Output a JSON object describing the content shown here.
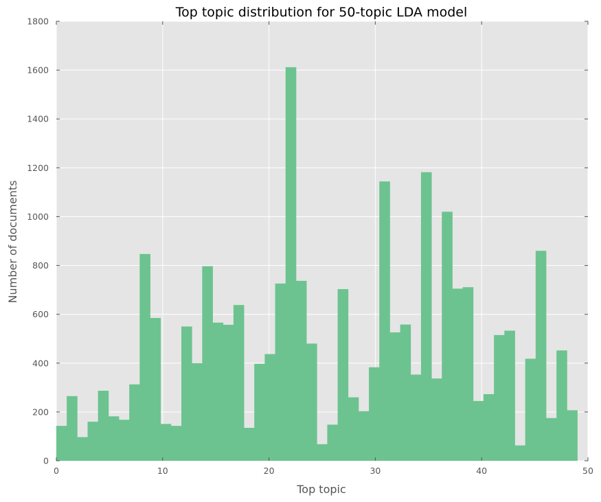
{
  "colors": {
    "plot_background": "#e5e5e5",
    "bar_fill": "#6cc38f",
    "text": "#555555"
  },
  "chart_data": {
    "type": "bar",
    "title": "Top topic distribution for 50-topic LDA model",
    "xlabel": "Top topic",
    "ylabel": "Number of documents",
    "xlim": [
      0,
      50
    ],
    "ylim": [
      0,
      1800
    ],
    "grid": true,
    "xticks": [
      0,
      10,
      20,
      30,
      40,
      50
    ],
    "yticks": [
      0,
      200,
      400,
      600,
      800,
      1000,
      1200,
      1400,
      1600,
      1800
    ],
    "bins": [
      0,
      1,
      2,
      3,
      4,
      5,
      6,
      7,
      8,
      9,
      10,
      11,
      12,
      13,
      14,
      15,
      16,
      17,
      18,
      19,
      20,
      21,
      22,
      23,
      24,
      25,
      26,
      27,
      28,
      29,
      30,
      31,
      32,
      33,
      34,
      35,
      36,
      37,
      38,
      39,
      40,
      41,
      42,
      43,
      44,
      45,
      46,
      47,
      48,
      49
    ],
    "values": [
      143,
      265,
      97,
      160,
      287,
      182,
      168,
      313,
      847,
      585,
      151,
      143,
      550,
      400,
      797,
      566,
      557,
      638,
      135,
      397,
      437,
      726,
      1612,
      737,
      480,
      68,
      148,
      703,
      260,
      203,
      383,
      1144,
      526,
      558,
      353,
      1182,
      337,
      1020,
      705,
      711,
      245,
      273,
      515,
      533,
      63,
      418,
      860,
      175,
      452,
      207
    ]
  }
}
